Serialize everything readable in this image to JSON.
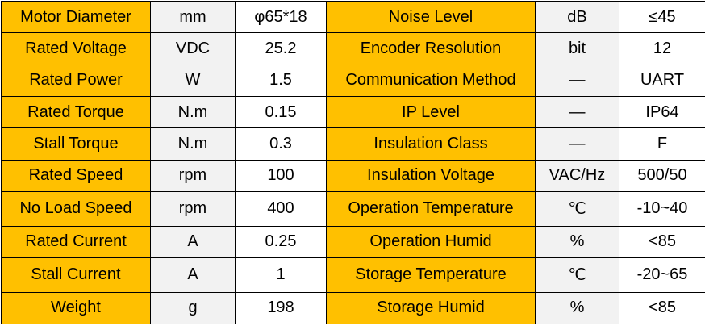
{
  "rows": [
    {
      "left": {
        "name": "Motor Diameter",
        "unit": "mm",
        "value": "φ65*18"
      },
      "right": {
        "name": "Noise Level",
        "unit": "dB",
        "value": "≤45"
      }
    },
    {
      "left": {
        "name": "Rated Voltage",
        "unit": "VDC",
        "value": "25.2"
      },
      "right": {
        "name": "Encoder Resolution",
        "unit": "bit",
        "value": "12"
      }
    },
    {
      "left": {
        "name": "Rated Power",
        "unit": "W",
        "value": "1.5"
      },
      "right": {
        "name": "Communication Method",
        "unit": "—",
        "value": "UART"
      }
    },
    {
      "left": {
        "name": "Rated Torque",
        "unit": "N.m",
        "value": "0.15"
      },
      "right": {
        "name": "IP Level",
        "unit": "—",
        "value": "IP64"
      }
    },
    {
      "left": {
        "name": "Stall Torque",
        "unit": "N.m",
        "value": "0.3"
      },
      "right": {
        "name": "Insulation Class",
        "unit": "—",
        "value": "F"
      }
    },
    {
      "left": {
        "name": "Rated Speed",
        "unit": "rpm",
        "value": "100"
      },
      "right": {
        "name": "Insulation Voltage",
        "unit": "VAC/Hz",
        "value": "500/50"
      }
    },
    {
      "left": {
        "name": "No Load Speed",
        "unit": "rpm",
        "value": "400"
      },
      "right": {
        "name": "Operation Temperature",
        "unit": "℃",
        "value": "-10~40"
      }
    },
    {
      "left": {
        "name": "Rated Current",
        "unit": "A",
        "value": "0.25"
      },
      "right": {
        "name": "Operation Humid",
        "unit": "%",
        "value": "<85"
      }
    },
    {
      "left": {
        "name": "Stall Current",
        "unit": "A",
        "value": "1"
      },
      "right": {
        "name": "Storage Temperature",
        "unit": "℃",
        "value": "-20~65"
      }
    },
    {
      "left": {
        "name": "Weight",
        "unit": "g",
        "value": "198"
      },
      "right": {
        "name": "Storage Humid",
        "unit": "%",
        "value": "<85"
      }
    }
  ],
  "colors": {
    "name_cell": "#ffc000",
    "unit_cell": "#f2f2f2",
    "value_cell": "#ffffff",
    "border": "#000000"
  }
}
